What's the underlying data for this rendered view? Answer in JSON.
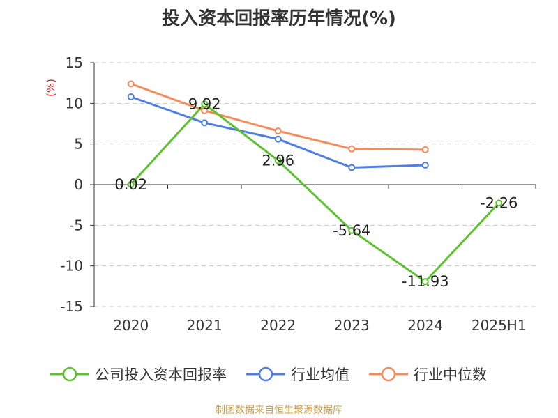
{
  "chart_data": {
    "type": "line",
    "title": "投入资本回报率历年情况(%)",
    "ylabel": "(%)",
    "categories": [
      "2020",
      "2021",
      "2022",
      "2023",
      "2024",
      "2025H1"
    ],
    "ylim": [
      -15,
      15
    ],
    "yticks": [
      15,
      10,
      5,
      0,
      -5,
      -10,
      -15
    ],
    "grid": true,
    "legend_position": "bottom",
    "series": [
      {
        "name": "公司投入资本回报率",
        "color": "#5cc22e",
        "values": [
          0.02,
          9.92,
          2.96,
          -5.64,
          -11.93,
          -2.26
        ],
        "labels": [
          "0.02",
          "9.92",
          "2.96",
          "-5.64",
          "-11.93",
          "-2.26"
        ]
      },
      {
        "name": "行业均值",
        "color": "#4f7fe0",
        "values": [
          10.8,
          7.6,
          5.6,
          2.1,
          2.4,
          null
        ]
      },
      {
        "name": "行业中位数",
        "color": "#f58c5a",
        "values": [
          12.4,
          9.1,
          6.6,
          4.4,
          4.3,
          null
        ]
      }
    ]
  },
  "footer": {
    "source": "制图数据来自恒生聚源数据库"
  }
}
